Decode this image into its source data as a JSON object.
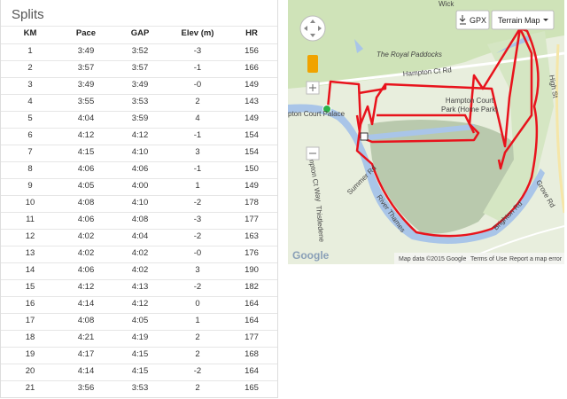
{
  "splits": {
    "title": "Splits",
    "columns": [
      "KM",
      "Pace",
      "GAP",
      "Elev (m)",
      "HR"
    ],
    "rows": [
      [
        "1",
        "3:49",
        "3:52",
        "-3",
        "156"
      ],
      [
        "2",
        "3:57",
        "3:57",
        "-1",
        "166"
      ],
      [
        "3",
        "3:49",
        "3:49",
        "-0",
        "149"
      ],
      [
        "4",
        "3:55",
        "3:53",
        "2",
        "143"
      ],
      [
        "5",
        "4:04",
        "3:59",
        "4",
        "149"
      ],
      [
        "6",
        "4:12",
        "4:12",
        "-1",
        "154"
      ],
      [
        "7",
        "4:15",
        "4:10",
        "3",
        "154"
      ],
      [
        "8",
        "4:06",
        "4:06",
        "-1",
        "150"
      ],
      [
        "9",
        "4:05",
        "4:00",
        "1",
        "149"
      ],
      [
        "10",
        "4:08",
        "4:10",
        "-2",
        "178"
      ],
      [
        "11",
        "4:06",
        "4:08",
        "-3",
        "177"
      ],
      [
        "12",
        "4:02",
        "4:04",
        "-2",
        "163"
      ],
      [
        "13",
        "4:02",
        "4:02",
        "-0",
        "176"
      ],
      [
        "14",
        "4:06",
        "4:02",
        "3",
        "190"
      ],
      [
        "15",
        "4:12",
        "4:13",
        "-2",
        "182"
      ],
      [
        "16",
        "4:14",
        "4:12",
        "0",
        "164"
      ],
      [
        "17",
        "4:08",
        "4:05",
        "1",
        "164"
      ],
      [
        "18",
        "4:21",
        "4:19",
        "2",
        "177"
      ],
      [
        "19",
        "4:17",
        "4:15",
        "2",
        "168"
      ],
      [
        "20",
        "4:14",
        "4:15",
        "-2",
        "164"
      ],
      [
        "21",
        "3:56",
        "3:53",
        "2",
        "165"
      ]
    ]
  },
  "map": {
    "gpx_button": "GPX",
    "map_type_button": "Terrain Map",
    "labels": {
      "wick": "Wick",
      "paddocks": "The Royal Paddocks",
      "hampton_ct_rd": "Hampton Ct Rd",
      "park": [
        "Hampton Court",
        "Park (Home Park)"
      ],
      "palace": "pton Court Palace",
      "high_st": "High St",
      "grove_rd": "Grove Rd",
      "hampton_ct_way": "Hampton Ct Way",
      "thistledene": "Thistledene",
      "summer_rd": "Summer Rd",
      "river": "River Thames",
      "brighton_rd": "Brighton Rd"
    },
    "footer": {
      "logo": "Google",
      "attribution": "Map data ©2015 Google",
      "terms": "Terms of Use",
      "report": "Report a map error"
    }
  }
}
